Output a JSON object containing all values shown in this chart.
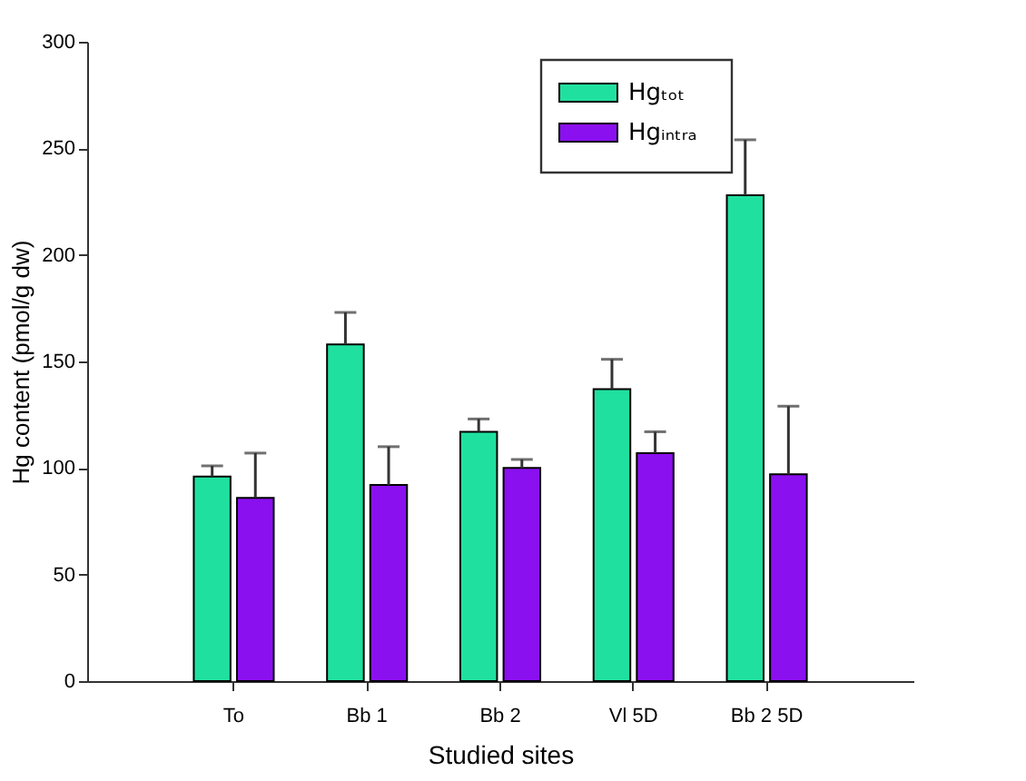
{
  "chart_data": {
    "type": "bar",
    "xlabel": "Studied sites",
    "ylabel": "Hg content (pmol/g dw)",
    "categories": [
      "To",
      "Bb 1",
      "Bb 2",
      "Vl 5D",
      "Bb 2 5D"
    ],
    "series": [
      {
        "name": "Hgₜₒₜ",
        "color": "#20e0a0",
        "values": [
          96,
          158,
          117,
          137,
          228
        ],
        "errors": [
          [
            96,
            101
          ],
          [
            158,
            173
          ],
          [
            117,
            123
          ],
          [
            137,
            151
          ],
          [
            228,
            254
          ]
        ]
      },
      {
        "name": "Hgᵢₙₜᵣₐ",
        "color": "#8a10f0",
        "values": [
          86,
          92,
          100,
          107,
          97
        ],
        "errors": [
          [
            86,
            107
          ],
          [
            92,
            110
          ],
          [
            100,
            104
          ],
          [
            107,
            117
          ],
          [
            97,
            129
          ]
        ]
      }
    ],
    "ylim": [
      0,
      300
    ],
    "yticks": [
      0,
      50,
      100,
      150,
      200,
      250,
      300
    ],
    "grid": false,
    "legend": "top right"
  }
}
